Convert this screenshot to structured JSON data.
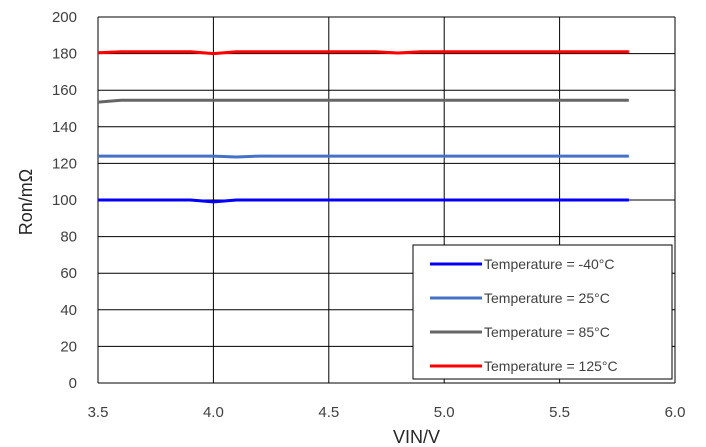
{
  "chart_data": {
    "type": "line",
    "xlabel": "VIN/V",
    "ylabel": "Ron/mΩ",
    "xlim": [
      3.5,
      6.0
    ],
    "ylim": [
      0,
      200
    ],
    "x_ticks": [
      3.5,
      4.0,
      4.5,
      5.0,
      5.5,
      6.0
    ],
    "x_tick_labels": [
      "3.5",
      "4.0",
      "4.5",
      "5.0",
      "5.5",
      "6.0"
    ],
    "y_ticks": [
      0,
      20,
      40,
      60,
      80,
      100,
      120,
      140,
      160,
      180,
      200
    ],
    "y_tick_labels": [
      "0",
      "20",
      "40",
      "60",
      "80",
      "100",
      "120",
      "140",
      "160",
      "180",
      "200"
    ],
    "grid": true,
    "legend_position": "bottom-right",
    "series": [
      {
        "name": "Temperature = -40°C",
        "color": "#0000ff",
        "x": [
          3.5,
          3.6,
          3.7,
          3.8,
          3.9,
          4.0,
          4.1,
          4.2,
          4.3,
          4.4,
          4.5,
          4.6,
          4.7,
          4.8,
          4.9,
          5.0,
          5.1,
          5.2,
          5.3,
          5.4,
          5.5,
          5.6,
          5.7,
          5.8
        ],
        "values": [
          100,
          100,
          100,
          100,
          100,
          99,
          100,
          100,
          100,
          100,
          100,
          100,
          100,
          100,
          100,
          100,
          100,
          100,
          100,
          100,
          100,
          100,
          100,
          100
        ]
      },
      {
        "name": "Temperature = 25°C",
        "color": "#4472c4",
        "x": [
          3.5,
          3.6,
          3.7,
          3.8,
          3.9,
          4.0,
          4.1,
          4.2,
          4.3,
          4.4,
          4.5,
          4.6,
          4.7,
          4.8,
          4.9,
          5.0,
          5.1,
          5.2,
          5.3,
          5.4,
          5.5,
          5.6,
          5.7,
          5.8
        ],
        "values": [
          124,
          124,
          124,
          124,
          124,
          124,
          123.5,
          124,
          124,
          124,
          124,
          124,
          124,
          124,
          124,
          124,
          124,
          124,
          124,
          124,
          124,
          124,
          124,
          124
        ]
      },
      {
        "name": "Temperature = 85°C",
        "color": "#666666",
        "x": [
          3.5,
          3.6,
          3.7,
          3.8,
          3.9,
          4.0,
          4.1,
          4.2,
          4.3,
          4.4,
          4.5,
          4.6,
          4.7,
          4.8,
          4.9,
          5.0,
          5.1,
          5.2,
          5.3,
          5.4,
          5.5,
          5.6,
          5.7,
          5.8
        ],
        "values": [
          153.5,
          154.5,
          154.5,
          154.5,
          154.5,
          154.5,
          154.5,
          154.5,
          154.5,
          154.5,
          154.5,
          154.5,
          154.5,
          154.5,
          154.5,
          154.5,
          154.5,
          154.5,
          154.5,
          154.5,
          154.5,
          154.5,
          154.5,
          154.5
        ]
      },
      {
        "name": "Temperature = 125°C",
        "color": "#ff0000",
        "x": [
          3.5,
          3.6,
          3.7,
          3.8,
          3.9,
          4.0,
          4.1,
          4.2,
          4.3,
          4.4,
          4.5,
          4.6,
          4.7,
          4.8,
          4.9,
          5.0,
          5.1,
          5.2,
          5.3,
          5.4,
          5.5,
          5.6,
          5.7,
          5.8
        ],
        "values": [
          180.5,
          181,
          181,
          181,
          181,
          180,
          181,
          181,
          181,
          181,
          181,
          181,
          181,
          180.3,
          181,
          181,
          181,
          181,
          181,
          181,
          181,
          181,
          181,
          181
        ]
      }
    ]
  }
}
